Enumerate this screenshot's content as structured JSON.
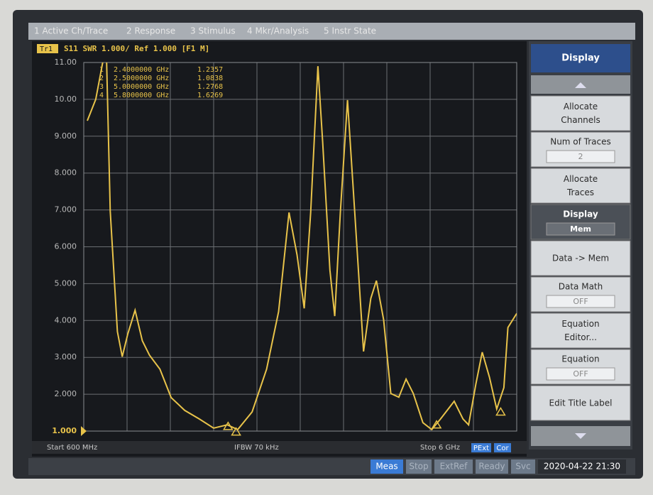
{
  "menu": [
    "1 Active Ch/Trace",
    "2 Response",
    "3 Stimulus",
    "4 Mkr/Analysis",
    "5 Instr State"
  ],
  "trace_header": {
    "trace": "Tr1",
    "text": "S11  SWR 1.000/ Ref 1.000 [F1 M]"
  },
  "chart_data": {
    "type": "line",
    "x": [
      0.644,
      0.75,
      0.88,
      0.93,
      1.02,
      1.08,
      1.15,
      1.24,
      1.33,
      1.42,
      1.55,
      1.69,
      1.86,
      2.04,
      2.22,
      2.39,
      2.52,
      2.7,
      2.88,
      3.03,
      3.16,
      3.26,
      3.35,
      3.43,
      3.52,
      3.58,
      3.67,
      3.73,
      3.8,
      3.89,
      3.98,
      4.09,
      4.18,
      4.25,
      4.34,
      4.43,
      4.53,
      4.62,
      4.71,
      4.83,
      4.94,
      5.05,
      5.22,
      5.33,
      5.4,
      5.49,
      5.57,
      5.66,
      5.75,
      5.84,
      5.89,
      6.0
    ],
    "series": [
      {
        "name": "S11",
        "color": "#e8c34a",
        "values": [
          9.42,
          10.0,
          11.5,
          6.97,
          3.7,
          3.02,
          3.64,
          4.28,
          3.45,
          3.06,
          2.68,
          1.91,
          1.56,
          1.33,
          1.08,
          1.17,
          1.04,
          1.52,
          2.68,
          4.24,
          6.93,
          5.78,
          4.33,
          6.93,
          10.9,
          8.84,
          5.37,
          4.12,
          6.93,
          9.98,
          6.93,
          3.16,
          4.6,
          5.08,
          4.02,
          2.02,
          1.92,
          2.41,
          2.02,
          1.23,
          1.04,
          1.33,
          1.81,
          1.33,
          1.17,
          2.27,
          3.14,
          2.46,
          1.6,
          2.18,
          3.81,
          4.19
        ]
      }
    ],
    "xlim": [
      0.6,
      6
    ],
    "ylim": [
      1,
      11
    ],
    "yticks": [
      {
        "value": 1,
        "label": "1.000"
      },
      {
        "value": 2,
        "label": "2.000"
      },
      {
        "value": 3,
        "label": "3.000"
      },
      {
        "value": 4,
        "label": "4.000"
      },
      {
        "value": 5,
        "label": "5.000"
      },
      {
        "value": 6,
        "label": "6.000"
      },
      {
        "value": 7,
        "label": "7.000"
      },
      {
        "value": 8,
        "label": "8.000"
      },
      {
        "value": 9,
        "label": "9.000"
      },
      {
        "value": 10,
        "label": "10.00"
      },
      {
        "value": 11,
        "label": "11.00"
      }
    ],
    "grid": true,
    "markers": [
      {
        "name": "1",
        "stimulus": {
          "value": 2.4,
          "label": "2.4000000 GHz"
        },
        "value": 1.2357
      },
      {
        "name": "2",
        "stimulus": {
          "value": 2.5,
          "label": "2.5000000 GHz"
        },
        "value": 1.0838
      },
      {
        "name": "3",
        "stimulus": {
          "value": 5.0,
          "label": "5.0000000 GHz"
        },
        "value": 1.2768
      },
      {
        "name": "4",
        "stimulus": {
          "value": 5.8,
          "label": "5.8000000 GHz"
        },
        "value": 1.6269
      }
    ]
  },
  "footer": {
    "start": "Start 600 MHz",
    "ifbw": "IFBW 70 kHz",
    "stop": "Stop 6 GHz",
    "pext": "PExt",
    "cor": "Cor"
  },
  "softkeys": {
    "title": "Display",
    "keys": [
      {
        "label": "Allocate Channels"
      },
      {
        "label": "Num of Traces",
        "state": "2"
      },
      {
        "label": "Allocate Traces"
      },
      {
        "label": "Display",
        "state": "Mem"
      },
      {
        "label": "Data -> Mem"
      },
      {
        "label": "Data Math",
        "state": "OFF"
      },
      {
        "label": "Equation Editor..."
      },
      {
        "label": "Equation",
        "state": "OFF"
      },
      {
        "label": "Edit Title Label"
      }
    ]
  },
  "status": [
    "Meas",
    "Stop",
    "ExtRef",
    "Ready",
    "Svc",
    "2020-04-22 21:30"
  ]
}
